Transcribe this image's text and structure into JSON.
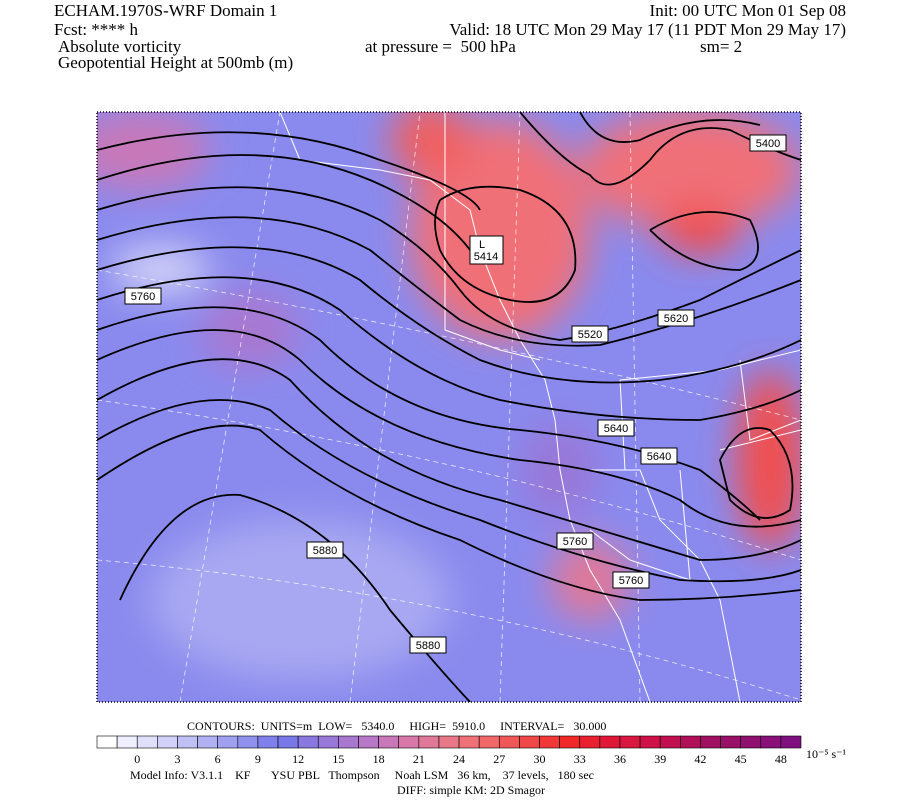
{
  "header": {
    "title": "ECHAM.1970S-WRF Domain 1",
    "init": "Init: 00 UTC Mon 01 Sep 08",
    "fcst": "Fcst: **** h",
    "valid": "Valid: 18 UTC Mon 29 May 17 (11 PDT Mon 29 May 17)",
    "field": "Absolute vorticity",
    "pressure": "at pressure =  500 hPa",
    "smoothing": "sm= 2",
    "contour_field": "Geopotential Height at 500mb (m)"
  },
  "map": {
    "low": {
      "symbol": "L",
      "value": 5414
    },
    "contour_labels": [
      5400,
      5620,
      5520,
      5760,
      5640,
      5640,
      5880,
      5760,
      5760,
      5880
    ]
  },
  "contour_info": "CONTOURS:  UNITS=m  LOW=   5340.0     HIGH=  5910.0     INTERVAL=   30.000",
  "colorbar": {
    "unit": "10⁻⁵ s⁻¹",
    "ticks": [
      0,
      3,
      6,
      9,
      12,
      15,
      18,
      21,
      24,
      27,
      30,
      33,
      36,
      39,
      42,
      45,
      48
    ],
    "colors": [
      "#ffffff",
      "#eeeeff",
      "#e0e0fa",
      "#d0d0f8",
      "#c0c0f5",
      "#b0b0f2",
      "#a0a0f0",
      "#9090ee",
      "#8080ec",
      "#7878e8",
      "#8878e0",
      "#9878d8",
      "#a878d0",
      "#b878c8",
      "#c878b8",
      "#d878a8",
      "#e07898",
      "#e87888",
      "#f07078",
      "#f06868",
      "#f05858",
      "#f04848",
      "#f03838",
      "#f02828",
      "#e82030",
      "#e01838",
      "#d81840",
      "#d01048",
      "#c01050",
      "#b01058",
      "#a01060",
      "#981068",
      "#901070",
      "#881078",
      "#801080"
    ]
  },
  "footer": {
    "model_info": "Model Info: V3.1.1    KF       YSU PBL   Thompson     Noah LSM   36 km,    37 levels,   180 sec",
    "diff": "DIFF: simple KM: 2D Smagor"
  }
}
